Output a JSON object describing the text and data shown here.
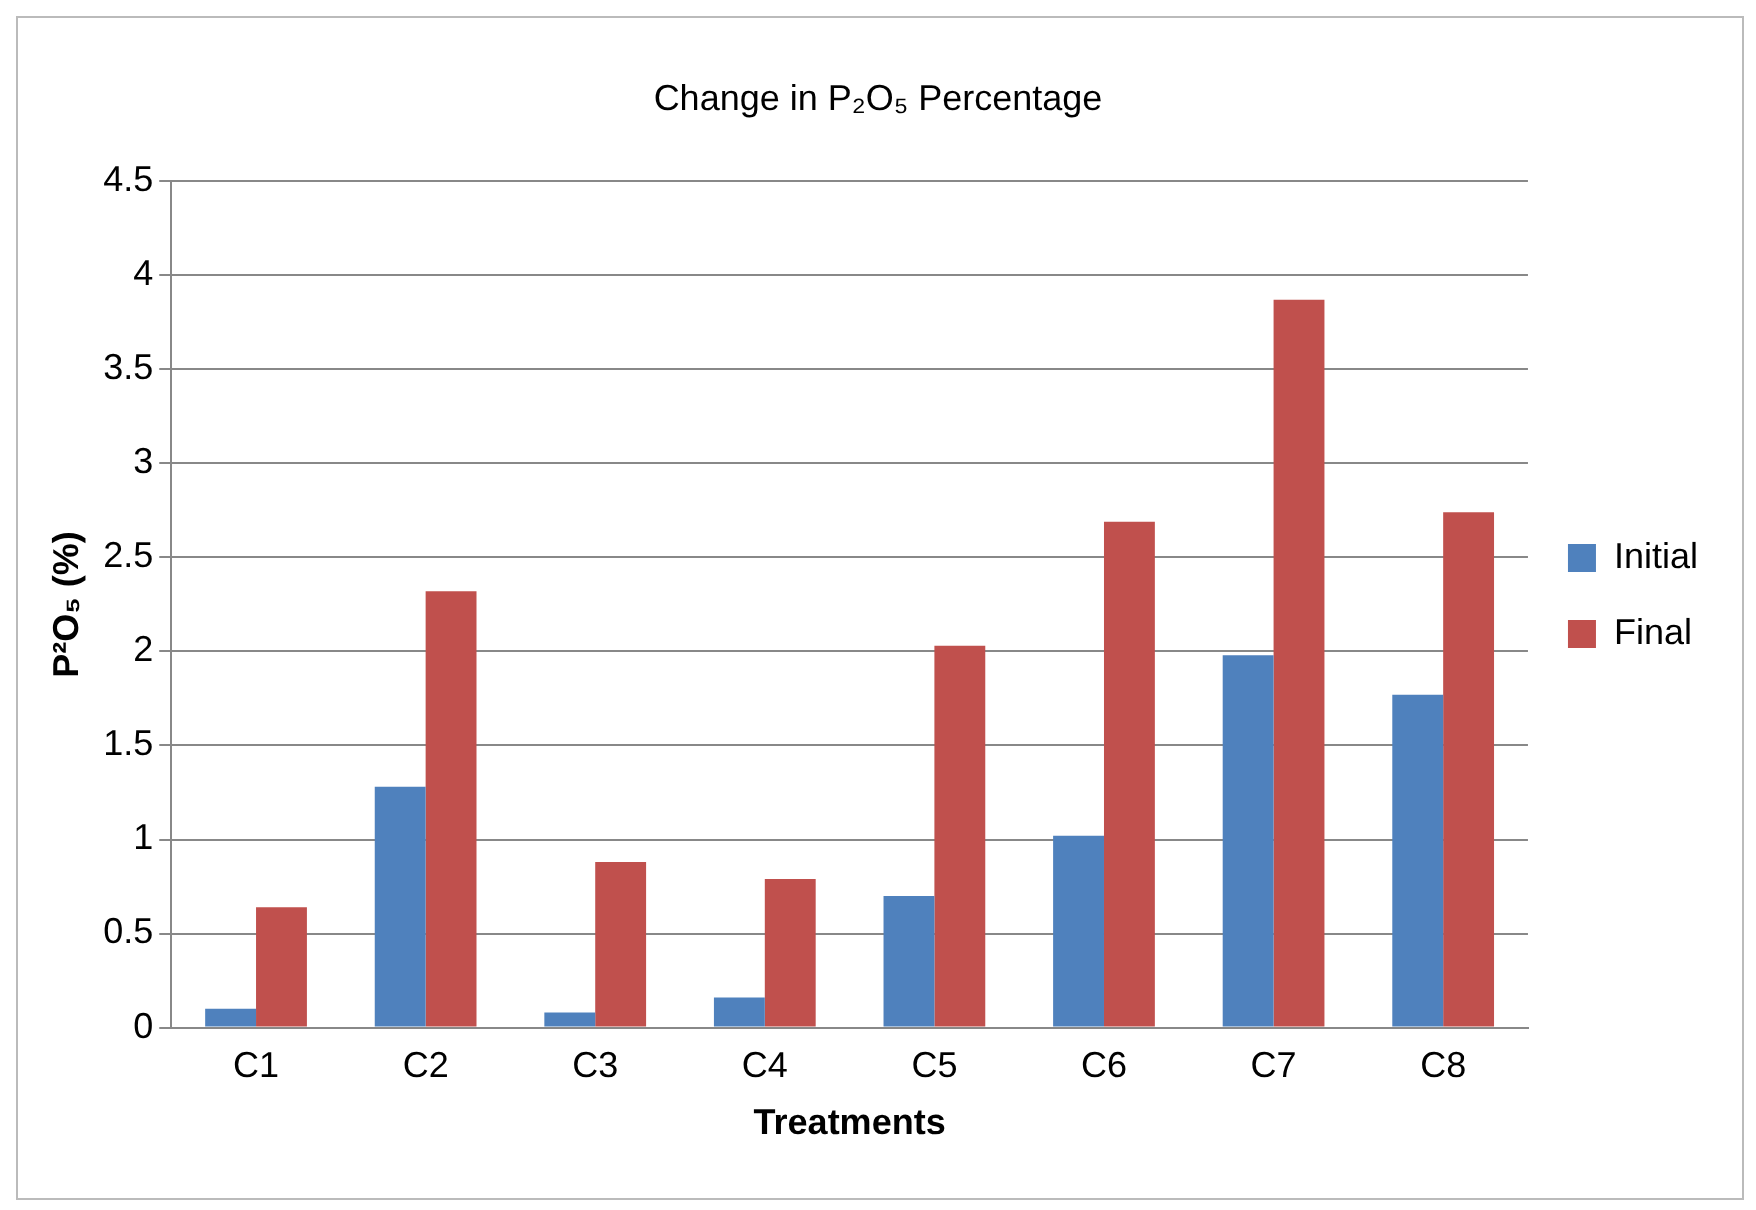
{
  "chart_data": {
    "type": "bar",
    "title": "Change in P₂O₅ Percentage",
    "xlabel": "Treatments",
    "ylabel": "P²O₅ (%)",
    "categories": [
      "C1",
      "C2",
      "C3",
      "C4",
      "C5",
      "C6",
      "C7",
      "C8"
    ],
    "series": [
      {
        "name": "Initial",
        "color": "#4f81bd",
        "values": [
          0.1,
          1.28,
          0.08,
          0.16,
          0.7,
          1.02,
          1.98,
          1.77
        ]
      },
      {
        "name": "Final",
        "color": "#c0504d",
        "values": [
          0.64,
          2.32,
          0.88,
          0.79,
          2.03,
          2.69,
          3.87,
          2.74
        ]
      }
    ],
    "ylim": [
      0,
      4.5
    ],
    "yticks": [
      0,
      0.5,
      1,
      1.5,
      2,
      2.5,
      3,
      3.5,
      4,
      4.5
    ],
    "grid": "y",
    "legend": "right"
  }
}
